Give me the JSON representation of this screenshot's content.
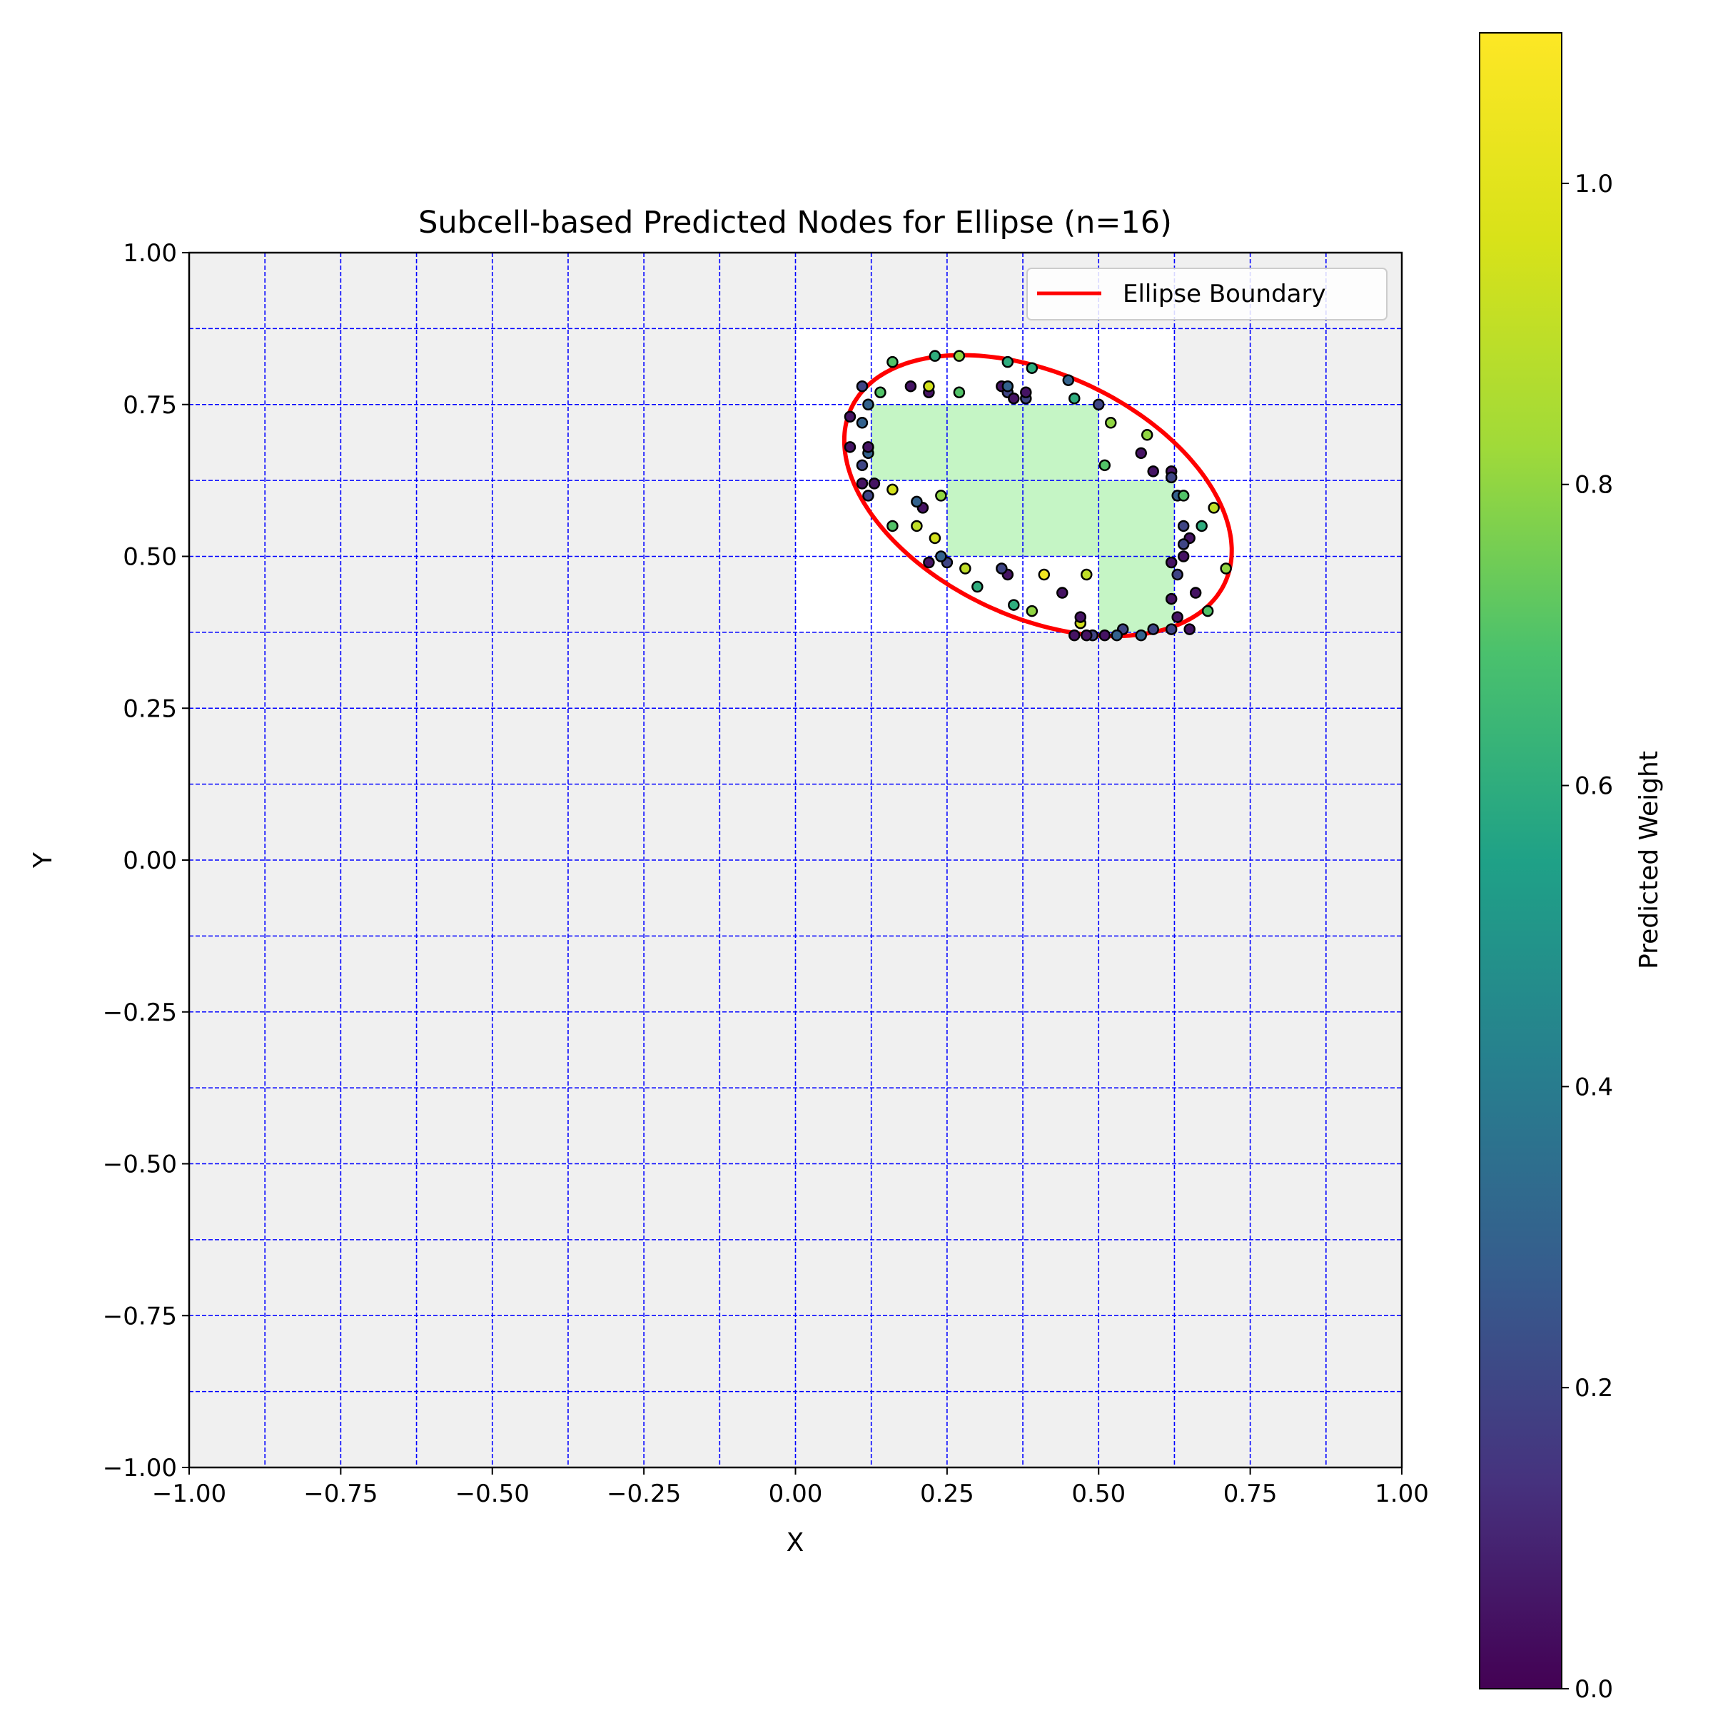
{
  "chart_data": {
    "type": "scatter",
    "title": "Subcell-based Predicted Nodes for Ellipse (n=16)",
    "xlabel": "X",
    "ylabel": "Y",
    "xlim": [
      -1.0,
      1.0
    ],
    "ylim": [
      -1.0,
      1.0
    ],
    "xticks": [
      "−1.00",
      "−0.75",
      "−0.50",
      "−0.25",
      "0.00",
      "0.25",
      "0.50",
      "0.75",
      "1.00"
    ],
    "yticks": [
      "−1.00",
      "−0.75",
      "−0.50",
      "−0.25",
      "0.00",
      "0.25",
      "0.50",
      "0.75",
      "1.00"
    ],
    "xtick_values": [
      -1.0,
      -0.75,
      -0.5,
      -0.25,
      0.0,
      0.25,
      0.5,
      0.75,
      1.0
    ],
    "ytick_values": [
      -1.0,
      -0.75,
      -0.5,
      -0.25,
      0.0,
      0.25,
      0.5,
      0.75,
      1.0
    ],
    "grid_lines": [
      -0.875,
      -0.75,
      -0.625,
      -0.5,
      -0.375,
      -0.25,
      -0.125,
      0.0,
      0.125,
      0.25,
      0.375,
      0.5,
      0.625,
      0.75,
      0.875
    ],
    "cell_size": 0.125,
    "outside_cell_color": "#f0f0f0",
    "cut_cell_color": "#ffffff",
    "inside_cell_color": "#c5f5c5",
    "grid_color": "#0000ff",
    "ellipse": {
      "center": [
        0.4,
        0.6
      ],
      "semi_major": 0.34,
      "semi_minor": 0.2,
      "angle_deg": -25,
      "color": "#ff0000",
      "label": "Ellipse Boundary"
    },
    "cut_cells": [
      [
        0.0,
        0.375
      ],
      [
        0.0,
        0.5
      ],
      [
        0.0,
        0.625
      ],
      [
        0.0,
        0.75
      ],
      [
        0.125,
        0.375
      ],
      [
        0.125,
        0.5
      ],
      [
        0.125,
        0.625
      ],
      [
        0.125,
        0.75
      ],
      [
        0.25,
        0.375
      ],
      [
        0.25,
        0.75
      ],
      [
        0.375,
        0.375
      ],
      [
        0.375,
        0.75
      ],
      [
        0.5,
        0.375
      ],
      [
        0.5,
        0.625
      ],
      [
        0.5,
        0.75
      ],
      [
        0.625,
        0.375
      ],
      [
        0.625,
        0.5
      ],
      [
        0.625,
        0.625
      ]
    ],
    "inside_cells": [
      [
        0.125,
        0.625
      ],
      [
        0.25,
        0.625
      ],
      [
        0.375,
        0.625
      ],
      [
        0.25,
        0.5
      ],
      [
        0.375,
        0.5
      ],
      [
        0.5,
        0.5
      ],
      [
        0.5,
        0.375
      ]
    ],
    "colorbar": {
      "label": "Predicted Weight",
      "min": 0.0,
      "max": 1.1,
      "ticks": [
        0.0,
        0.2,
        0.4,
        0.6,
        0.8,
        1.0
      ],
      "tick_labels": [
        "0.0",
        "0.2",
        "0.4",
        "0.6",
        "0.8",
        "1.0"
      ],
      "colormap": "viridis"
    },
    "legend": {
      "entries": [
        "Ellipse Boundary"
      ],
      "position": "top-right"
    },
    "points": [
      [
        0.09,
        0.73,
        0.05
      ],
      [
        0.09,
        0.68,
        0.05
      ],
      [
        0.11,
        0.65,
        0.2
      ],
      [
        0.11,
        0.62,
        0.05
      ],
      [
        0.12,
        0.67,
        0.3
      ],
      [
        0.12,
        0.68,
        0.05
      ],
      [
        0.12,
        0.75,
        0.3
      ],
      [
        0.11,
        0.72,
        0.3
      ],
      [
        0.11,
        0.78,
        0.2
      ],
      [
        0.14,
        0.77,
        0.7
      ],
      [
        0.16,
        0.82,
        0.7
      ],
      [
        0.19,
        0.78,
        0.05
      ],
      [
        0.22,
        0.77,
        0.05
      ],
      [
        0.22,
        0.78,
        0.95
      ],
      [
        0.23,
        0.83,
        0.6
      ],
      [
        0.27,
        0.77,
        0.7
      ],
      [
        0.27,
        0.83,
        0.8
      ],
      [
        0.34,
        0.78,
        0.05
      ],
      [
        0.35,
        0.77,
        0.2
      ],
      [
        0.35,
        0.78,
        0.3
      ],
      [
        0.35,
        0.82,
        0.6
      ],
      [
        0.36,
        0.76,
        0.05
      ],
      [
        0.38,
        0.76,
        0.2
      ],
      [
        0.38,
        0.77,
        0.05
      ],
      [
        0.39,
        0.81,
        0.6
      ],
      [
        0.45,
        0.79,
        0.3
      ],
      [
        0.46,
        0.76,
        0.6
      ],
      [
        0.5,
        0.75,
        0.2
      ],
      [
        0.52,
        0.72,
        0.8
      ],
      [
        0.51,
        0.65,
        0.7
      ],
      [
        0.57,
        0.67,
        0.05
      ],
      [
        0.58,
        0.7,
        0.8
      ],
      [
        0.59,
        0.64,
        0.05
      ],
      [
        0.62,
        0.64,
        0.05
      ],
      [
        0.62,
        0.63,
        0.2
      ],
      [
        0.63,
        0.6,
        0.3
      ],
      [
        0.64,
        0.6,
        0.7
      ],
      [
        0.64,
        0.55,
        0.2
      ],
      [
        0.65,
        0.53,
        0.05
      ],
      [
        0.64,
        0.52,
        0.2
      ],
      [
        0.67,
        0.55,
        0.6
      ],
      [
        0.69,
        0.58,
        0.9
      ],
      [
        0.71,
        0.48,
        0.8
      ],
      [
        0.62,
        0.49,
        0.05
      ],
      [
        0.63,
        0.47,
        0.2
      ],
      [
        0.64,
        0.5,
        0.05
      ],
      [
        0.62,
        0.43,
        0.05
      ],
      [
        0.63,
        0.4,
        0.05
      ],
      [
        0.66,
        0.44,
        0.05
      ],
      [
        0.68,
        0.41,
        0.7
      ],
      [
        0.65,
        0.38,
        0.05
      ],
      [
        0.62,
        0.38,
        0.2
      ],
      [
        0.59,
        0.38,
        0.2
      ],
      [
        0.57,
        0.37,
        0.3
      ],
      [
        0.54,
        0.38,
        0.2
      ],
      [
        0.53,
        0.37,
        0.3
      ],
      [
        0.51,
        0.37,
        0.05
      ],
      [
        0.49,
        0.37,
        0.2
      ],
      [
        0.48,
        0.37,
        0.05
      ],
      [
        0.46,
        0.37,
        0.05
      ],
      [
        0.47,
        0.39,
        0.95
      ],
      [
        0.47,
        0.4,
        0.05
      ],
      [
        0.48,
        0.47,
        0.9
      ],
      [
        0.44,
        0.44,
        0.05
      ],
      [
        0.41,
        0.47,
        1.05
      ],
      [
        0.39,
        0.41,
        0.8
      ],
      [
        0.36,
        0.42,
        0.6
      ],
      [
        0.35,
        0.47,
        0.05
      ],
      [
        0.34,
        0.48,
        0.2
      ],
      [
        0.3,
        0.45,
        0.6
      ],
      [
        0.28,
        0.48,
        0.9
      ],
      [
        0.25,
        0.49,
        0.2
      ],
      [
        0.24,
        0.5,
        0.3
      ],
      [
        0.22,
        0.49,
        0.05
      ],
      [
        0.2,
        0.55,
        0.9
      ],
      [
        0.21,
        0.58,
        0.05
      ],
      [
        0.2,
        0.59,
        0.3
      ],
      [
        0.23,
        0.53,
        0.95
      ],
      [
        0.24,
        0.6,
        0.8
      ],
      [
        0.16,
        0.55,
        0.7
      ],
      [
        0.16,
        0.61,
        0.95
      ],
      [
        0.12,
        0.6,
        0.2
      ],
      [
        0.13,
        0.62,
        0.05
      ]
    ]
  }
}
